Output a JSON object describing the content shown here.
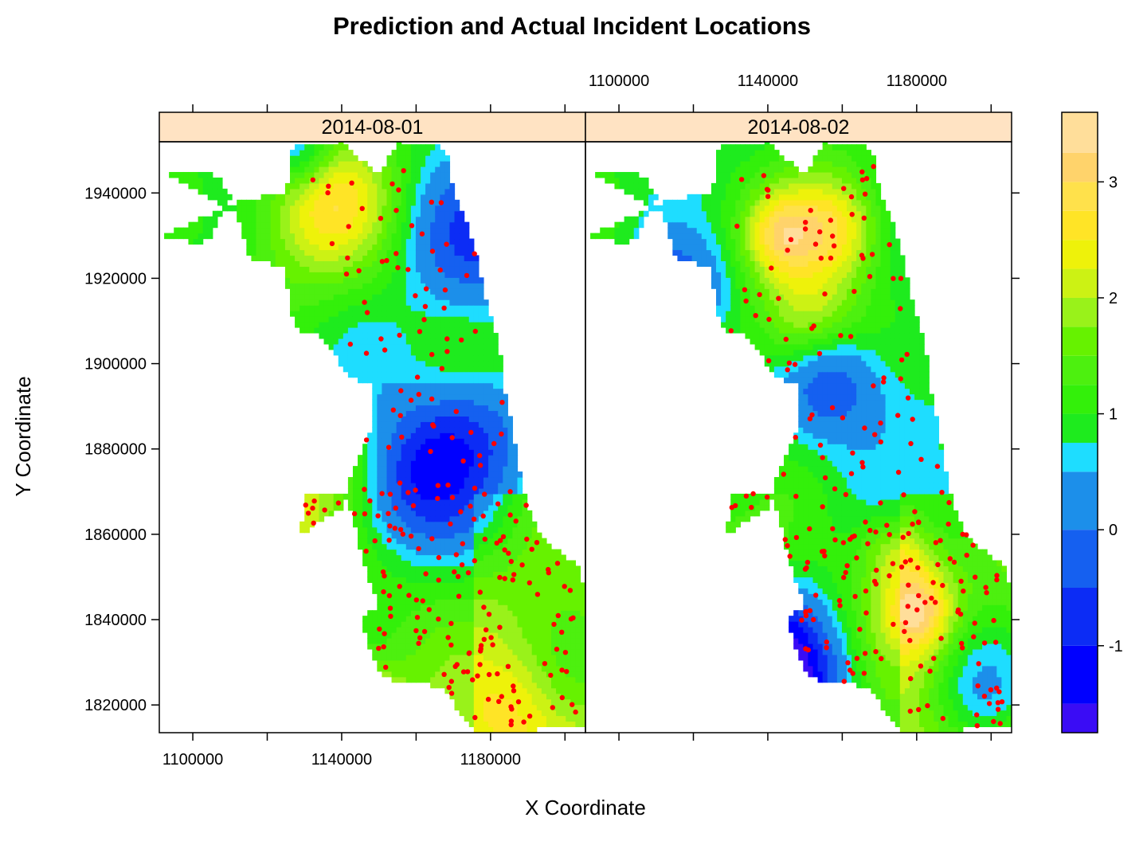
{
  "chart_data": {
    "type": "heatmap",
    "title": "Prediction and Actual Incident Locations",
    "xlabel": "X Coordinate",
    "ylabel": "Y Coordinate",
    "xlim": [
      1091000,
      1205500
    ],
    "ylim": [
      1813500,
      1952000
    ],
    "x_ticks": [
      1100000,
      1120000,
      1140000,
      1160000,
      1180000,
      1200000
    ],
    "x_tick_labels": [
      "1100000",
      "1140000",
      "1180000"
    ],
    "y_ticks": [
      1820000,
      1840000,
      1860000,
      1880000,
      1900000,
      1920000,
      1940000
    ],
    "y_tick_labels": [
      "1820000",
      "1840000",
      "1860000",
      "1880000",
      "1900000",
      "1920000",
      "1940000"
    ],
    "panels": [
      {
        "label": "2014-08-01",
        "seed": 11
      },
      {
        "label": "2014-08-02",
        "seed": 29
      }
    ],
    "colorkey": {
      "min": -1.75,
      "max": 3.6,
      "breaks": [
        -1.75,
        -1.5,
        -1.0,
        -0.5,
        0.0,
        0.5,
        0.75,
        1.0,
        1.25,
        1.5,
        1.75,
        2.0,
        2.25,
        2.5,
        2.75,
        3.0,
        3.25,
        3.6
      ],
      "colors": [
        "#3A0CF5",
        "#0000FF",
        "#0C2CF5",
        "#1560F0",
        "#1C8FEA",
        "#1EDDFF",
        "#1EEB1E",
        "#33F00A",
        "#4DF00F",
        "#66F200",
        "#99F21A",
        "#CCF214",
        "#EEF20A",
        "#FFE426",
        "#FFE14B",
        "#FFD36B",
        "#FFDE9A"
      ],
      "tick_values": [
        -1,
        0,
        1,
        2,
        3
      ],
      "tick_labels": [
        "-1",
        "0",
        "1",
        "2",
        "3"
      ]
    },
    "point_color": "#FF0000",
    "strip_color": "#FFE3C3",
    "region_outline": [
      [
        1092000,
        1945000
      ],
      [
        1100000,
        1945000
      ],
      [
        1107000,
        1944000
      ],
      [
        1110000,
        1939000
      ],
      [
        1105000,
        1930000
      ],
      [
        1101000,
        1928000
      ],
      [
        1092000,
        1930000
      ],
      [
        1113000,
        1938000
      ],
      [
        1125000,
        1940000
      ],
      [
        1127000,
        1951000
      ],
      [
        1140000,
        1952000
      ],
      [
        1145000,
        1948000
      ],
      [
        1150000,
        1944000
      ],
      [
        1155000,
        1952000
      ],
      [
        1165000,
        1951500
      ],
      [
        1168000,
        1950000
      ],
      [
        1170000,
        1940000
      ],
      [
        1174000,
        1932000
      ],
      [
        1176000,
        1926000
      ],
      [
        1178000,
        1918000
      ],
      [
        1181000,
        1908000
      ],
      [
        1183000,
        1900000
      ],
      [
        1184000,
        1892000
      ],
      [
        1186000,
        1884000
      ],
      [
        1187000,
        1878000
      ],
      [
        1189000,
        1870000
      ],
      [
        1192000,
        1862000
      ],
      [
        1198000,
        1856000
      ],
      [
        1204000,
        1852000
      ],
      [
        1205500,
        1845000
      ],
      [
        1205500,
        1830000
      ],
      [
        1205500,
        1815000
      ],
      [
        1190000,
        1814000
      ],
      [
        1175000,
        1814000
      ],
      [
        1172000,
        1818000
      ],
      [
        1168000,
        1823000
      ],
      [
        1162000,
        1825000
      ],
      [
        1155000,
        1825000
      ],
      [
        1150000,
        1828000
      ],
      [
        1148000,
        1832000
      ],
      [
        1145000,
        1840000
      ],
      [
        1150000,
        1843000
      ],
      [
        1148000,
        1848000
      ],
      [
        1145000,
        1856000
      ],
      [
        1143000,
        1865000
      ],
      [
        1140000,
        1870000
      ],
      [
        1130000,
        1870000
      ],
      [
        1129000,
        1860000
      ],
      [
        1140000,
        1866000
      ],
      [
        1143000,
        1875000
      ],
      [
        1148000,
        1885000
      ],
      [
        1148000,
        1895000
      ],
      [
        1142000,
        1897000
      ],
      [
        1135000,
        1906000
      ],
      [
        1128000,
        1908000
      ],
      [
        1126000,
        1913000
      ],
      [
        1125000,
        1922000
      ],
      [
        1115000,
        1925000
      ],
      [
        1112000,
        1935000
      ]
    ]
  }
}
